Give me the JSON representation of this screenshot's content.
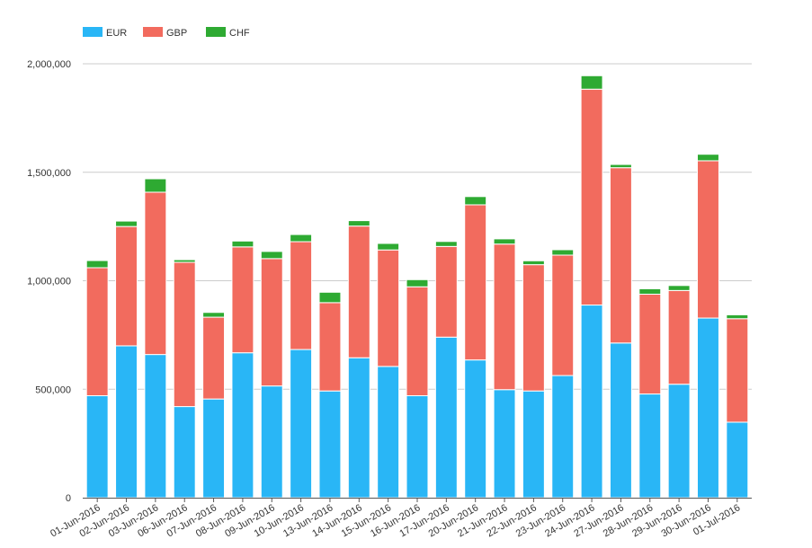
{
  "chart_data": {
    "type": "bar",
    "stacked": true,
    "categories": [
      "01-Jun-2016",
      "02-Jun-2016",
      "03-Jun-2016",
      "06-Jun-2016",
      "07-Jun-2016",
      "08-Jun-2016",
      "09-Jun-2016",
      "10-Jun-2016",
      "13-Jun-2016",
      "14-Jun-2016",
      "15-Jun-2016",
      "16-Jun-2016",
      "17-Jun-2016",
      "20-Jun-2016",
      "21-Jun-2016",
      "22-Jun-2016",
      "23-Jun-2016",
      "24-Jun-2016",
      "27-Jun-2016",
      "28-Jun-2016",
      "29-Jun-2016",
      "30-Jun-2016",
      "01-Jul-2016"
    ],
    "series": [
      {
        "name": "EUR",
        "color": "#29b6f6",
        "values": [
          470000,
          700000,
          660000,
          420000,
          455000,
          668000,
          515000,
          683000,
          492000,
          645000,
          605000,
          470000,
          740000,
          635000,
          498000,
          492000,
          563000,
          888000,
          713000,
          478000,
          523000,
          828000,
          348000
        ]
      },
      {
        "name": "GBP",
        "color": "#f26b5e",
        "values": [
          590000,
          550000,
          748000,
          665000,
          377000,
          488000,
          587000,
          497000,
          407000,
          607000,
          537000,
          502000,
          418000,
          715000,
          671000,
          582000,
          555000,
          995000,
          808000,
          460000,
          432000,
          725000,
          477000
        ]
      },
      {
        "name": "CHF",
        "color": "#2eaa32",
        "values": [
          33000,
          25000,
          62000,
          12000,
          22000,
          27000,
          33000,
          33000,
          48000,
          25000,
          30000,
          33000,
          23000,
          38000,
          24000,
          18000,
          25000,
          62000,
          15000,
          25000,
          23000,
          30000,
          18000
        ]
      }
    ],
    "y_ticks": [
      "0",
      "500,000",
      "1,000,000",
      "1,500,000",
      "2,000,000"
    ],
    "y_tick_values": [
      0,
      500000,
      1000000,
      1500000,
      2000000
    ],
    "ylim": [
      0,
      2000000
    ],
    "grid": true,
    "legend_position": "top-left",
    "title": "",
    "xlabel": "",
    "ylabel": ""
  }
}
